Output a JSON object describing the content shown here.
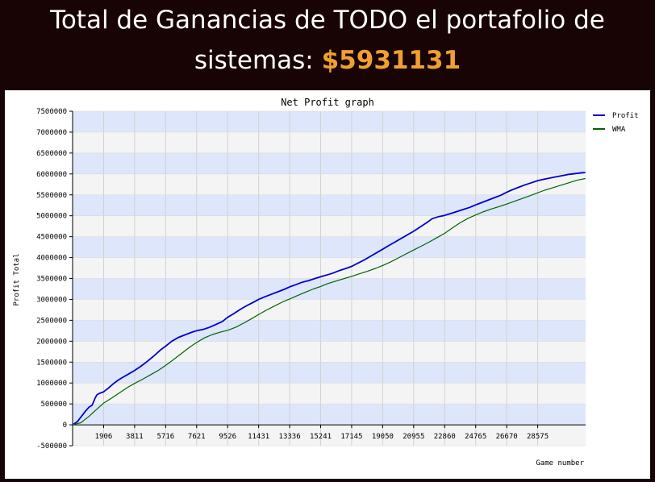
{
  "header": {
    "line1": "Total de Ganancias de TODO el portafolio de",
    "line2_prefix": "sistemas: ",
    "amount": "$5931131"
  },
  "colors": {
    "background": "#180404",
    "amount": "#f0a030",
    "band_light": "#dde6fb",
    "band_alt": "#f4f4f4",
    "profit": "#0000cc",
    "wma": "#006400"
  },
  "chart_data": {
    "type": "line",
    "title": "Net Profit graph",
    "xlabel": "Game number",
    "ylabel": "Profit Total",
    "xlim": [
      0,
      31520
    ],
    "ylim": [
      -500000,
      7500000
    ],
    "yticks": [
      -500000,
      0,
      500000,
      1000000,
      1500000,
      2000000,
      2500000,
      3000000,
      3500000,
      4000000,
      4500000,
      5000000,
      5500000,
      6000000,
      6500000,
      7000000,
      7500000
    ],
    "xticks": [
      1906,
      3811,
      5716,
      7621,
      9526,
      11431,
      13336,
      15241,
      17145,
      19050,
      20955,
      22860,
      24765,
      26670,
      28575
    ],
    "grid": true,
    "legend": "top-right",
    "series": [
      {
        "name": "Profit",
        "color": "#0000cc",
        "x": [
          0,
          300,
          500,
          800,
          1000,
          1200,
          1400,
          1500,
          1700,
          1906,
          2200,
          2500,
          2800,
          3100,
          3500,
          3811,
          4200,
          4600,
          5000,
          5400,
          5716,
          6100,
          6500,
          6900,
          7300,
          7621,
          8000,
          8400,
          8800,
          9200,
          9526,
          9900,
          10300,
          10700,
          11100,
          11431,
          11800,
          12200,
          12600,
          13000,
          13336,
          13700,
          14100,
          14500,
          14900,
          15241,
          15600,
          16000,
          16400,
          16800,
          17145,
          17500,
          17900,
          18300,
          18700,
          19050,
          19400,
          19800,
          20200,
          20600,
          20955,
          21300,
          21700,
          22100,
          22500,
          22860,
          23200,
          23600,
          24000,
          24400,
          24765,
          25100,
          25500,
          25900,
          26300,
          26670,
          27000,
          27400,
          27800,
          28200,
          28575,
          28900,
          29300,
          29700,
          30100,
          30500,
          30900,
          31300,
          31500
        ],
        "values": [
          0,
          80000,
          180000,
          330000,
          420000,
          470000,
          650000,
          720000,
          760000,
          790000,
          880000,
          980000,
          1070000,
          1140000,
          1230000,
          1300000,
          1400000,
          1520000,
          1650000,
          1790000,
          1880000,
          2000000,
          2090000,
          2150000,
          2210000,
          2250000,
          2280000,
          2330000,
          2400000,
          2470000,
          2570000,
          2660000,
          2760000,
          2850000,
          2930000,
          3000000,
          3060000,
          3120000,
          3180000,
          3240000,
          3300000,
          3350000,
          3410000,
          3450000,
          3500000,
          3540000,
          3580000,
          3630000,
          3690000,
          3740000,
          3790000,
          3860000,
          3940000,
          4030000,
          4120000,
          4200000,
          4280000,
          4370000,
          4460000,
          4550000,
          4630000,
          4720000,
          4820000,
          4930000,
          4980000,
          5010000,
          5050000,
          5100000,
          5150000,
          5200000,
          5260000,
          5310000,
          5370000,
          5430000,
          5490000,
          5560000,
          5620000,
          5680000,
          5740000,
          5790000,
          5840000,
          5870000,
          5900000,
          5930000,
          5960000,
          5990000,
          6010000,
          6030000,
          6035000
        ]
      },
      {
        "name": "WMA",
        "color": "#006400",
        "x": [
          0,
          500,
          1000,
          1500,
          1906,
          2400,
          2900,
          3400,
          3811,
          4300,
          4800,
          5300,
          5716,
          6200,
          6700,
          7200,
          7621,
          8100,
          8600,
          9100,
          9526,
          10000,
          10500,
          11000,
          11431,
          11900,
          12400,
          12900,
          13336,
          13800,
          14300,
          14800,
          15241,
          15700,
          16200,
          16700,
          17145,
          17600,
          18100,
          18600,
          19050,
          19500,
          20000,
          20500,
          20955,
          21400,
          21900,
          22400,
          22860,
          23300,
          23800,
          24300,
          24765,
          25200,
          25700,
          26200,
          26670,
          27100,
          27600,
          28100,
          28575,
          29000,
          29500,
          30000,
          30500,
          31000,
          31500
        ],
        "values": [
          0,
          50000,
          200000,
          380000,
          520000,
          640000,
          770000,
          900000,
          990000,
          1090000,
          1200000,
          1310000,
          1420000,
          1560000,
          1710000,
          1860000,
          1970000,
          2080000,
          2160000,
          2220000,
          2260000,
          2330000,
          2430000,
          2540000,
          2640000,
          2740000,
          2840000,
          2940000,
          3010000,
          3090000,
          3170000,
          3250000,
          3310000,
          3380000,
          3440000,
          3500000,
          3550000,
          3610000,
          3670000,
          3740000,
          3810000,
          3890000,
          3990000,
          4090000,
          4180000,
          4270000,
          4370000,
          4480000,
          4580000,
          4700000,
          4830000,
          4940000,
          5020000,
          5090000,
          5160000,
          5220000,
          5280000,
          5340000,
          5410000,
          5480000,
          5550000,
          5610000,
          5670000,
          5730000,
          5790000,
          5850000,
          5890000
        ]
      }
    ]
  }
}
